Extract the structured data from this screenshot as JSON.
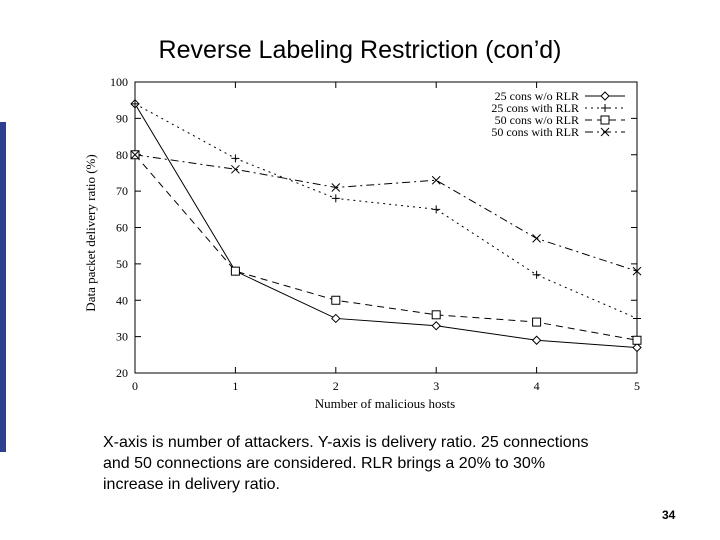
{
  "slide": {
    "title": "Reverse Labeling Restriction (con’d)",
    "caption": "X-axis is number of attackers. Y-axis is delivery ratio. 25 connections and 50 connections are considered. RLR brings a 20% to 30% increase in delivery ratio.",
    "page_number": "34",
    "accent_color": "#2f3f8f"
  },
  "chart_data": {
    "type": "line",
    "title": "",
    "xlabel": "Number of malicious hosts",
    "ylabel": "Data packet delivery ratio (%)",
    "x": [
      0,
      1,
      2,
      3,
      4,
      5
    ],
    "xlim": [
      0,
      5
    ],
    "ylim": [
      20,
      100
    ],
    "xticks": [
      0,
      1,
      2,
      3,
      4,
      5
    ],
    "yticks": [
      20,
      30,
      40,
      50,
      60,
      70,
      80,
      90,
      100
    ],
    "grid": false,
    "legend_position": "top-right",
    "series": [
      {
        "name": "25 cons w/o RLR",
        "values": [
          94,
          48,
          35,
          33,
          29,
          27
        ],
        "marker": "diamond",
        "line": "solid"
      },
      {
        "name": "25 cons with RLR",
        "values": [
          94,
          79,
          68,
          65,
          47,
          35
        ],
        "marker": "plus",
        "line": "dotted"
      },
      {
        "name": "50 cons w/o RLR",
        "values": [
          80,
          48,
          40,
          36,
          34,
          29
        ],
        "marker": "square",
        "line": "dashed"
      },
      {
        "name": "50 cons with RLR",
        "values": [
          80,
          76,
          71,
          73,
          57,
          48
        ],
        "marker": "cross",
        "line": "dashdot"
      }
    ]
  }
}
